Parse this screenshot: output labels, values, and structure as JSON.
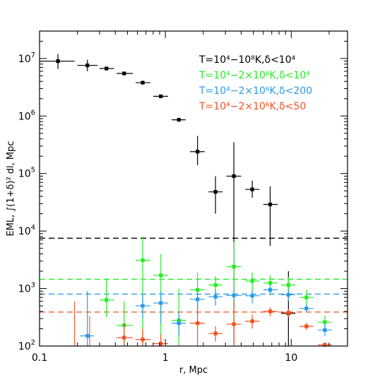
{
  "chart_data": {
    "type": "scatter",
    "title": "",
    "xlabel": "r, Mpc",
    "ylabel": "EML, ∫(1+δ)² dl, Mpc",
    "xscale": "log",
    "yscale": "log",
    "xlim": [
      0.1,
      28
    ],
    "ylim": [
      100,
      30000000
    ],
    "grid": false,
    "legend_position": "top-right",
    "x_ticks": [
      {
        "value": 0.1,
        "label": "0.1"
      },
      {
        "value": 1,
        "label": "1"
      },
      {
        "value": 10,
        "label": "10"
      }
    ],
    "y_ticks": [
      {
        "value": 100,
        "mantissa": "10",
        "exp": "2"
      },
      {
        "value": 1000,
        "mantissa": "10",
        "exp": "3"
      },
      {
        "value": 10000,
        "mantissa": "10",
        "exp": "4"
      },
      {
        "value": 100000,
        "mantissa": "10",
        "exp": "5"
      },
      {
        "value": 1000000,
        "mantissa": "10",
        "exp": "6"
      },
      {
        "value": 10000000,
        "mantissa": "10",
        "exp": "7"
      }
    ],
    "series": [
      {
        "name": "T=10⁴−10⁸K,δ<10⁴",
        "color": "#000000",
        "threshold": 7500,
        "points": [
          {
            "x": 0.14,
            "y": 9000000,
            "xlo": 0.1,
            "xhi": 0.19,
            "ylo": 6600000,
            "yhi": 12000000
          },
          {
            "x": 0.24,
            "y": 7600000,
            "xlo": 0.2,
            "xhi": 0.29,
            "ylo": 6000000,
            "yhi": 9500000
          },
          {
            "x": 0.34,
            "y": 6700000,
            "xlo": 0.3,
            "xhi": 0.39
          },
          {
            "x": 0.47,
            "y": 5500000,
            "xlo": 0.41,
            "xhi": 0.55
          },
          {
            "x": 0.66,
            "y": 3800000,
            "xlo": 0.58,
            "xhi": 0.76
          },
          {
            "x": 0.92,
            "y": 2200000,
            "xlo": 0.8,
            "xhi": 1.05
          },
          {
            "x": 1.28,
            "y": 860000,
            "xlo": 1.12,
            "xhi": 1.45
          },
          {
            "x": 1.8,
            "y": 240000,
            "xlo": 1.57,
            "xhi": 2.05,
            "ylo": 140000,
            "yhi": 450000
          },
          {
            "x": 2.5,
            "y": 48000,
            "xlo": 2.2,
            "xhi": 2.85,
            "ylo": 20000,
            "yhi": 90000
          },
          {
            "x": 3.5,
            "y": 90000,
            "xlo": 3.05,
            "xhi": 4.0,
            "ylo": 105,
            "yhi": 350000
          },
          {
            "x": 4.9,
            "y": 53000,
            "xlo": 4.3,
            "xhi": 5.6,
            "ylo": 38000,
            "yhi": 75000
          },
          {
            "x": 6.8,
            "y": 29000,
            "xlo": 6.0,
            "xhi": 7.8,
            "ylo": 5500,
            "yhi": 60000
          },
          {
            "x": 9.5,
            "y": 370,
            "xlo": 8.3,
            "xhi": 10.8,
            "ylo": 100,
            "yhi": 2000
          }
        ]
      },
      {
        "name": "T=10⁴−2×10⁶K,δ<10⁴",
        "color": "#22ee22",
        "threshold": 1450,
        "points": [
          {
            "x": 0.34,
            "y": 630,
            "xlo": 0.3,
            "xhi": 0.39,
            "ylo": 320,
            "yhi": 1500
          },
          {
            "x": 0.47,
            "y": 230,
            "xlo": 0.41,
            "xhi": 0.55,
            "ylo": 100,
            "yhi": 600
          },
          {
            "x": 0.66,
            "y": 3100,
            "xlo": 0.58,
            "xhi": 0.76,
            "ylo": 100,
            "yhi": 8000
          },
          {
            "x": 0.92,
            "y": 1700,
            "xlo": 0.8,
            "xhi": 1.05,
            "ylo": 100,
            "yhi": 4000
          },
          {
            "x": 1.28,
            "y": 280,
            "xlo": 1.12,
            "xhi": 1.45,
            "ylo": 100,
            "yhi": 1000
          },
          {
            "x": 1.8,
            "y": 950,
            "xlo": 1.57,
            "xhi": 2.05,
            "ylo": 450,
            "yhi": 1900
          },
          {
            "x": 2.5,
            "y": 1150,
            "xlo": 2.2,
            "xhi": 2.85,
            "ylo": 780,
            "yhi": 1650
          },
          {
            "x": 3.5,
            "y": 2400,
            "xlo": 3.05,
            "xhi": 4.0,
            "ylo": 180,
            "yhi": 6500
          },
          {
            "x": 4.9,
            "y": 1350,
            "xlo": 4.3,
            "xhi": 5.6,
            "ylo": 900,
            "yhi": 1900
          },
          {
            "x": 6.8,
            "y": 1250,
            "xlo": 6.0,
            "xhi": 7.8,
            "ylo": 800,
            "yhi": 1700
          },
          {
            "x": 9.5,
            "y": 1150,
            "xlo": 8.3,
            "xhi": 10.8,
            "ylo": 800,
            "yhi": 1600
          },
          {
            "x": 13.2,
            "y": 700,
            "xlo": 11.6,
            "xhi": 15.0,
            "ylo": 480,
            "yhi": 950
          },
          {
            "x": 18.5,
            "y": 260,
            "xlo": 16.3,
            "xhi": 21.0,
            "ylo": 200,
            "yhi": 340
          }
        ]
      },
      {
        "name": "T=10⁴−2×10⁶K,δ<200",
        "color": "#2b9be8",
        "threshold": 800,
        "points": [
          {
            "x": 0.24,
            "y": 150,
            "xlo": 0.21,
            "xhi": 0.27,
            "ylo": 100,
            "yhi": 900
          },
          {
            "x": 0.66,
            "y": 500,
            "xlo": 0.58,
            "xhi": 0.76,
            "ylo": 300,
            "yhi": 800
          },
          {
            "x": 0.92,
            "y": 560,
            "xlo": 0.8,
            "xhi": 1.05,
            "ylo": 250,
            "yhi": 900
          },
          {
            "x": 1.28,
            "y": 250,
            "xlo": 1.12,
            "xhi": 1.45,
            "ylo": 150,
            "yhi": 400
          },
          {
            "x": 1.8,
            "y": 650,
            "xlo": 1.57,
            "xhi": 2.05,
            "ylo": 450,
            "yhi": 850
          },
          {
            "x": 2.5,
            "y": 720,
            "xlo": 2.2,
            "xhi": 2.85,
            "ylo": 500,
            "yhi": 950
          },
          {
            "x": 3.5,
            "y": 760,
            "xlo": 3.05,
            "xhi": 4.0,
            "ylo": 500,
            "yhi": 1000
          },
          {
            "x": 4.9,
            "y": 750,
            "xlo": 4.3,
            "xhi": 5.6,
            "ylo": 550,
            "yhi": 950
          },
          {
            "x": 6.8,
            "y": 950,
            "xlo": 6.0,
            "xhi": 7.8,
            "ylo": 780,
            "yhi": 1150
          },
          {
            "x": 9.5,
            "y": 780,
            "xlo": 8.3,
            "xhi": 10.8,
            "ylo": 600,
            "yhi": 950
          },
          {
            "x": 13.2,
            "y": 450,
            "xlo": 11.6,
            "xhi": 15.0,
            "ylo": 380,
            "yhi": 530
          },
          {
            "x": 18.5,
            "y": 190,
            "xlo": 16.3,
            "xhi": 21.0,
            "ylo": 150,
            "yhi": 240
          }
        ]
      },
      {
        "name": "T=10⁴−2×10⁶K,δ<50",
        "color": "#f05020",
        "threshold": 390,
        "points": [
          {
            "x": 0.47,
            "y": 140,
            "xlo": 0.41,
            "xhi": 0.55,
            "ylo": 100,
            "yhi": 250
          },
          {
            "x": 0.66,
            "y": 130,
            "xlo": 0.58,
            "xhi": 0.76,
            "ylo": 100,
            "yhi": 200
          },
          {
            "x": 0.92,
            "y": 110,
            "xlo": 0.8,
            "xhi": 1.05,
            "ylo": 100,
            "yhi": 160
          },
          {
            "x": 1.8,
            "y": 250,
            "xlo": 1.57,
            "xhi": 2.05,
            "ylo": 100,
            "yhi": 500
          },
          {
            "x": 2.5,
            "y": 165,
            "xlo": 2.2,
            "xhi": 2.85,
            "ylo": 120,
            "yhi": 220
          },
          {
            "x": 3.5,
            "y": 240,
            "xlo": 3.05,
            "xhi": 4.0,
            "ylo": 100,
            "yhi": 600
          },
          {
            "x": 4.9,
            "y": 270,
            "xlo": 4.3,
            "xhi": 5.6,
            "ylo": 200,
            "yhi": 350
          },
          {
            "x": 6.8,
            "y": 400,
            "xlo": 6.0,
            "xhi": 7.8,
            "ylo": 330,
            "yhi": 470
          },
          {
            "x": 9.5,
            "y": 380,
            "xlo": 8.3,
            "xhi": 10.8,
            "ylo": 320,
            "yhi": 440
          },
          {
            "x": 13.2,
            "y": 220,
            "xlo": 11.6,
            "xhi": 15.0,
            "ylo": 190,
            "yhi": 250
          },
          {
            "x": 18.5,
            "y": 105,
            "xlo": 16.3,
            "xhi": 21.0,
            "ylo": 100,
            "yhi": 115
          }
        ],
        "spikes": [
          {
            "x": 0.19,
            "ylo": 100,
            "yhi": 600
          },
          {
            "x": 0.25,
            "ylo": 100,
            "yhi": 330
          }
        ]
      }
    ]
  }
}
